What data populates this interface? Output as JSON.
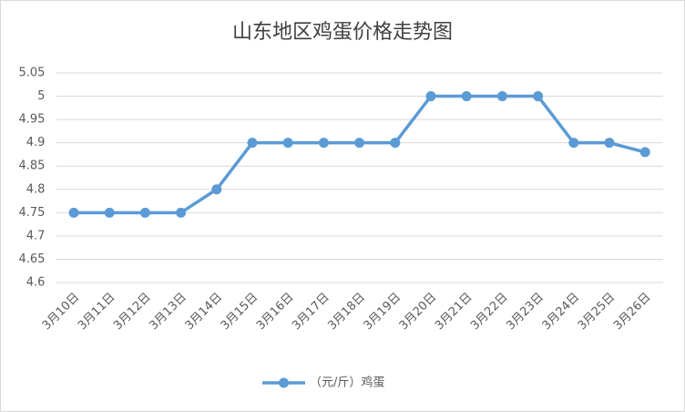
{
  "chart_data": {
    "type": "line",
    "title": "山东地区鸡蛋价格走势图",
    "categories": [
      "3月10日",
      "3月11日",
      "3月12日",
      "3月13日",
      "3月14日",
      "3月15日",
      "3月16日",
      "3月17日",
      "3月18日",
      "3月19日",
      "3月20日",
      "3月21日",
      "3月22日",
      "3月23日",
      "3月24日",
      "3月25日",
      "3月26日"
    ],
    "series": [
      {
        "name": "（元/斤）鸡蛋",
        "color": "#5b9bd5",
        "values": [
          4.75,
          4.75,
          4.75,
          4.75,
          4.8,
          4.9,
          4.9,
          4.9,
          4.9,
          4.9,
          5,
          5,
          5,
          5,
          4.9,
          4.9,
          4.88
        ]
      }
    ],
    "ylim": [
      4.6,
      5.05
    ],
    "yticks": [
      4.6,
      4.65,
      4.7,
      4.75,
      4.8,
      4.85,
      4.9,
      4.95,
      5,
      5.05
    ],
    "grid": true,
    "legend": "bottom"
  }
}
